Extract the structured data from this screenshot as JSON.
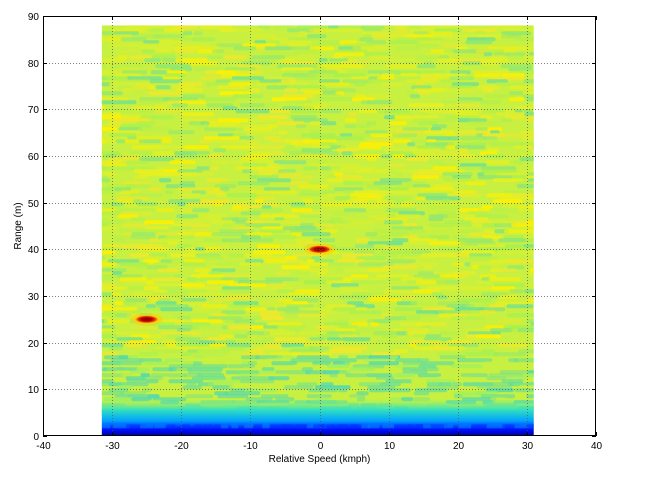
{
  "chart_data": {
    "type": "heatmap",
    "title": "",
    "xlabel": "Relative Speed (kmph)",
    "ylabel": "Range (m)",
    "xlim": [
      -40,
      40
    ],
    "ylim": [
      0,
      90
    ],
    "xticks": [
      -40,
      -30,
      -20,
      -10,
      0,
      10,
      20,
      30,
      40
    ],
    "yticks": [
      0,
      10,
      20,
      30,
      40,
      50,
      60,
      70,
      80,
      90
    ],
    "grid": true,
    "data_extent": {
      "x": [
        -31.5,
        31
      ],
      "y": [
        0,
        88
      ]
    },
    "colormap": "jet",
    "background_level": "yellow-green noise (mid intensity)",
    "low_band": {
      "y": [
        0,
        4
      ],
      "level": "blue (low intensity) near zero range"
    },
    "targets": [
      {
        "relative_speed": -25,
        "range": 25,
        "level": "max"
      },
      {
        "relative_speed": 0,
        "range": 40,
        "level": "max"
      }
    ]
  }
}
